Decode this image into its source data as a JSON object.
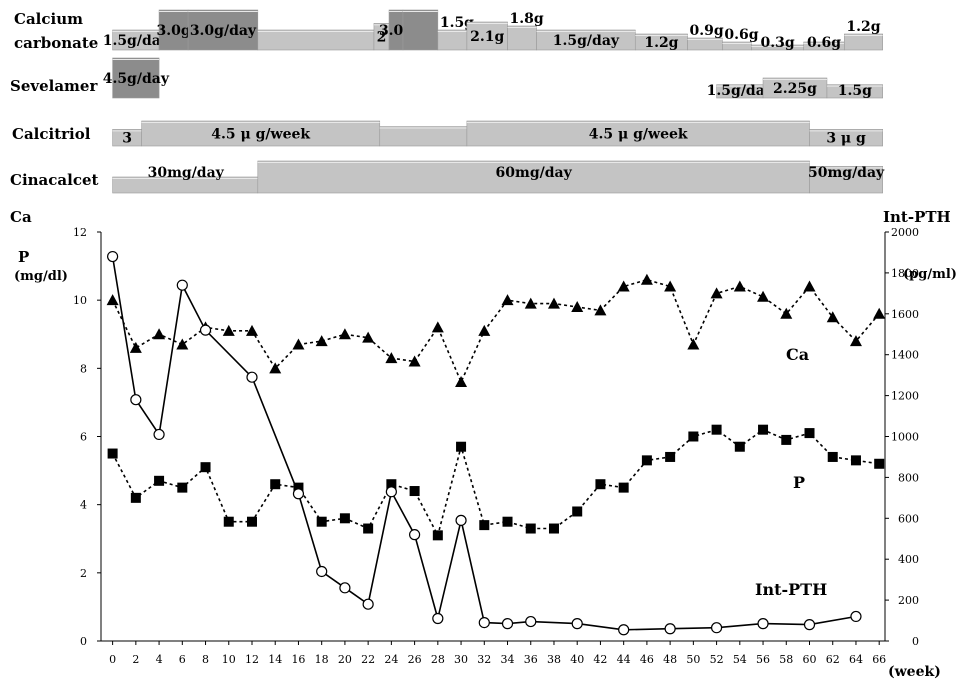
{
  "medications": [
    {
      "name": "Calcium carbonate",
      "segments": [
        {
          "start": 0,
          "end": 4,
          "label": "1.5g/day",
          "level": 1.5
        },
        {
          "start": 4,
          "end": 6.5,
          "label": "3.0g",
          "level": 3.0
        },
        {
          "start": 6.5,
          "end": 12.5,
          "label": "3.0g/day",
          "level": 3.0
        },
        {
          "start": 12.5,
          "end": 22.5,
          "label": "",
          "level": 1.5
        },
        {
          "start": 22.5,
          "end": 23.8,
          "label": "2",
          "level": 2.0
        },
        {
          "start": 23.8,
          "end": 25,
          "label": "3.0g",
          "level": 3.0
        },
        {
          "start": 25,
          "end": 28,
          "label": "",
          "level": 3.0
        },
        {
          "start": 28,
          "end": 30.5,
          "label": "1.5g",
          "level": 1.5
        },
        {
          "start": 30.5,
          "end": 34,
          "label": "2.1g",
          "level": 2.1
        },
        {
          "start": 34,
          "end": 36.5,
          "label": "1.8g",
          "level": 1.8
        },
        {
          "start": 36.5,
          "end": 45,
          "label": "1.5g/day",
          "level": 1.5
        },
        {
          "start": 45,
          "end": 49.5,
          "label": "1.2g",
          "level": 1.2
        },
        {
          "start": 49.5,
          "end": 52.5,
          "label": "0.9g",
          "level": 0.9
        },
        {
          "start": 52.5,
          "end": 55,
          "label": "0.6g",
          "level": 0.6
        },
        {
          "start": 55,
          "end": 59.5,
          "label": "0.3g",
          "level": 0.3
        },
        {
          "start": 59.5,
          "end": 63,
          "label": "0.6g",
          "level": 0.6
        },
        {
          "start": 63,
          "end": 66.3,
          "label": "1.2g",
          "level": 1.2
        }
      ]
    },
    {
      "name": "Sevelamer",
      "segments": [
        {
          "start": 0,
          "end": 4,
          "label": "4.5g/day",
          "level": 4.5
        },
        {
          "start": 52,
          "end": 56,
          "label": "1.5g/day",
          "level": 1.5
        },
        {
          "start": 56,
          "end": 61.5,
          "label": "2.25g",
          "level": 2.25
        },
        {
          "start": 61.5,
          "end": 66.3,
          "label": "1.5g",
          "level": 1.5
        }
      ]
    },
    {
      "name": "Calcitriol",
      "segments": [
        {
          "start": 0,
          "end": 2.5,
          "label": "3",
          "level": 3
        },
        {
          "start": 2.5,
          "end": 23,
          "label": "4.5 μ g/week",
          "level": 4.5
        },
        {
          "start": 23,
          "end": 30.5,
          "label": "",
          "level": 3.5
        },
        {
          "start": 30.5,
          "end": 60,
          "label": "4.5 μ g/week",
          "level": 4.5
        },
        {
          "start": 60,
          "end": 66.3,
          "label": "3 μ g",
          "level": 3
        }
      ]
    },
    {
      "name": "Cinacalcet",
      "segments": [
        {
          "start": 0,
          "end": 12.5,
          "label": "30mg/day",
          "level": 30
        },
        {
          "start": 12.5,
          "end": 60,
          "label": "60mg/day",
          "level": 60
        },
        {
          "start": 60,
          "end": 66.3,
          "label": "50mg/day",
          "level": 50
        }
      ]
    }
  ],
  "chart_data": {
    "type": "line",
    "x_label": "(week)",
    "x_ticks": [
      0,
      2,
      4,
      6,
      8,
      10,
      12,
      14,
      16,
      18,
      20,
      22,
      24,
      26,
      28,
      30,
      32,
      34,
      36,
      38,
      40,
      42,
      44,
      46,
      48,
      50,
      52,
      54,
      56,
      58,
      60,
      62,
      64,
      66
    ],
    "xlim": [
      -1,
      66.5
    ],
    "y_left_title_1": "Ca",
    "y_left_title_2": "P",
    "y_left_unit": "(mg/dl)",
    "y_left_ticks": [
      0,
      2,
      4,
      6,
      8,
      10,
      12
    ],
    "ylim_left": [
      0,
      12
    ],
    "y_right_title": "Int-PTH",
    "y_right_unit": "(pg/ml)",
    "y_right_ticks": [
      0,
      200,
      400,
      600,
      800,
      1000,
      1200,
      1400,
      1600,
      1800,
      2000
    ],
    "ylim_right": [
      0,
      2000
    ],
    "grid": false,
    "series": [
      {
        "name": "Ca",
        "axis": "left",
        "marker": "triangle",
        "line": "dotted",
        "x": [
          0,
          2,
          4,
          6,
          8,
          10,
          12,
          14,
          16,
          18,
          20,
          22,
          24,
          26,
          28,
          30,
          32,
          34,
          36,
          38,
          40,
          42,
          44,
          46,
          48,
          50,
          52,
          54,
          56,
          58,
          60,
          62,
          64,
          66
        ],
        "y": [
          10.0,
          8.6,
          9.0,
          8.7,
          9.2,
          9.1,
          9.1,
          8.0,
          8.7,
          8.8,
          9.0,
          8.9,
          8.3,
          8.2,
          9.2,
          7.6,
          9.1,
          10.0,
          9.9,
          9.9,
          9.8,
          9.7,
          10.4,
          10.6,
          10.4,
          8.7,
          10.2,
          10.4,
          10.1,
          9.6,
          10.4,
          9.5,
          8.8,
          9.6
        ]
      },
      {
        "name": "P",
        "axis": "left",
        "marker": "square",
        "line": "dotted",
        "x": [
          0,
          2,
          4,
          6,
          8,
          10,
          12,
          14,
          16,
          18,
          20,
          22,
          24,
          26,
          28,
          30,
          32,
          34,
          36,
          38,
          40,
          42,
          44,
          46,
          48,
          50,
          52,
          54,
          56,
          58,
          60,
          62,
          64,
          66
        ],
        "y": [
          5.5,
          4.2,
          4.7,
          4.5,
          5.1,
          3.5,
          3.5,
          4.6,
          4.5,
          3.5,
          3.6,
          3.3,
          4.6,
          4.4,
          3.1,
          5.7,
          3.4,
          3.5,
          3.3,
          3.3,
          3.8,
          4.6,
          4.5,
          5.3,
          5.4,
          6.0,
          6.2,
          5.7,
          6.2,
          5.9,
          6.1,
          5.4,
          5.3,
          5.2
        ]
      },
      {
        "name": "Int-PTH",
        "axis": "right",
        "marker": "open-circle",
        "line": "solid",
        "x": [
          0,
          2,
          4,
          6,
          8,
          12,
          16,
          18,
          20,
          22,
          24,
          26,
          28,
          30,
          32,
          34,
          36,
          40,
          44,
          48,
          52,
          56,
          60,
          64
        ],
        "y": [
          1880,
          1180,
          1010,
          1740,
          1520,
          1290,
          720,
          340,
          260,
          180,
          730,
          520,
          110,
          590,
          90,
          85,
          95,
          85,
          55,
          60,
          65,
          85,
          80,
          120
        ]
      }
    ]
  }
}
